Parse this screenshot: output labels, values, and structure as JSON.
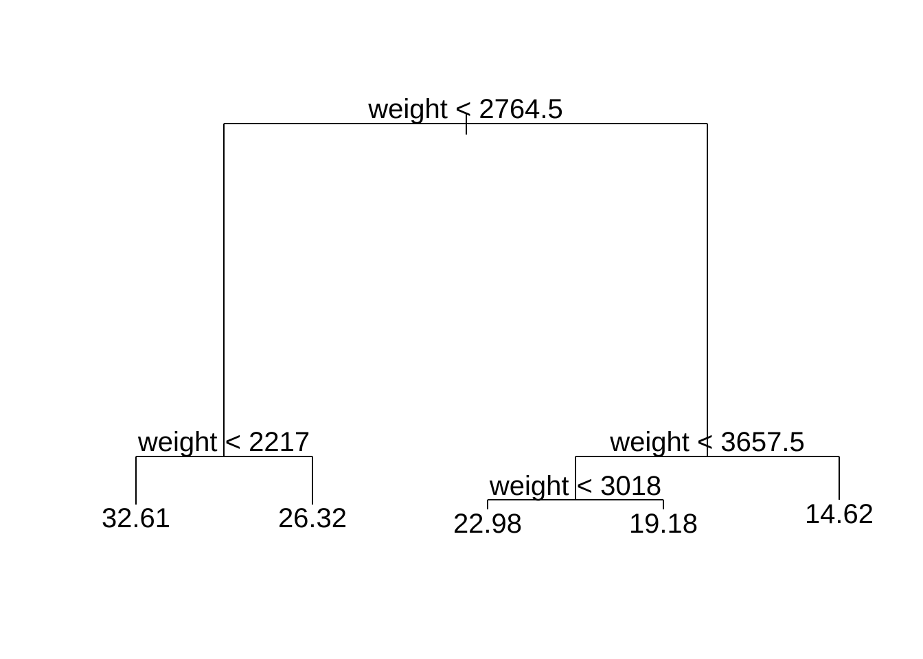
{
  "tree": {
    "root_split": "weight < 2764.5",
    "left_split": "weight < 2217",
    "right_split": "weight < 3657.5",
    "right_left_split": "weight < 3018",
    "leaves": {
      "leaf_1": "32.61",
      "leaf_2": "26.32",
      "leaf_3": "22.98",
      "leaf_4": "19.18",
      "leaf_5": "14.62"
    }
  }
}
